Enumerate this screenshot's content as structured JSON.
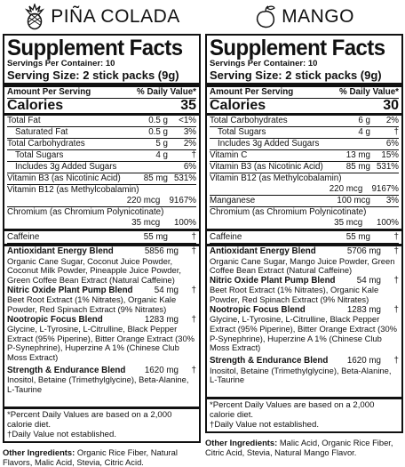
{
  "panels": [
    {
      "flavor": "PIÑA COLADA",
      "icon": "pineapple-icon",
      "title": "Supplement Facts",
      "servings": "Servings Per Container: 10",
      "serving_size": "Serving Size: 2 stick packs (9g)",
      "amount_per_serving": "Amount Per Serving",
      "daily_value_header": "% Daily Value*",
      "calories_label": "Calories",
      "calories": "35",
      "nutrients": [
        {
          "label": "Total Fat",
          "amount": "0.5 g",
          "dv": "<1%",
          "indent": false
        },
        {
          "label": "Saturated Fat",
          "amount": "0.5 g",
          "dv": "3%",
          "indent": true
        },
        {
          "label": "Total Carbohydrates",
          "amount": "5 g",
          "dv": "2%",
          "indent": false
        },
        {
          "label": "Total Sugars",
          "amount": "4 g",
          "dv": "†",
          "indent": true
        },
        {
          "label": "Includes 3g Added Sugars",
          "amount": "",
          "dv": "6%",
          "indent": true
        },
        {
          "label": "Vitamin B3 (as Nicotinic Acid)",
          "amount": "85 mg",
          "dv": "531%",
          "indent": false
        }
      ],
      "b12_label": "Vitamin B12 (as Methylcobalamin)",
      "b12_amount": "220 mcg",
      "b12_dv": "9167%",
      "chromium_label": "Chromium (as Chromium Polynicotinate)",
      "chromium_amount": "35 mcg",
      "chromium_dv": "100%",
      "caffeine_label": "Caffeine",
      "caffeine_amount": "55 mg",
      "caffeine_dv": "†",
      "blends": [
        {
          "name": "Antioxidant Energy Blend",
          "amount": "5856 mg",
          "dv": "†",
          "ingredients": "Organic Cane Sugar, Coconut Juice Powder, Coconut Milk Powder, Pineapple Juice Powder, Green Coffee Bean Extract (Natural Caffeine)"
        },
        {
          "name": "Nitric Oxide Plant Pump Blend",
          "amount": "54 mg",
          "dv": "†",
          "ingredients": "Beet Root Extract (1% Nitrates), Organic Kale Powder, Red Spinach Extract (9% Nitrates)"
        },
        {
          "name": "Nootropic Focus Blend",
          "amount": "1283 mg",
          "dv": "†",
          "ingredients": "Glycine, L-Tyrosine, L-Citrulline, Black Pepper Extract (95% Piperine), Bitter Orange Extract (30% P-Synephrine), Huperzine A 1% (Chinese Club Moss Extract)"
        },
        {
          "name": "Strength & Endurance Blend",
          "amount": "1620 mg",
          "dv": "†",
          "ingredients": "Inositol, Betaine (Trimethylglycine), Beta-Alanine, L-Taurine"
        }
      ],
      "footnote1": "*Percent Daily Values are based on a 2,000 calorie diet.",
      "footnote2": "†Daily Value not established.",
      "other_label": "Other Ingredients:",
      "other_text": " Organic Rice Fiber, Natural Flavors, Malic Acid, Stevia, Citric Acid."
    },
    {
      "flavor": "MANGO",
      "icon": "mango-icon",
      "title": "Supplement Facts",
      "servings": "Servings Per Container: 10",
      "serving_size": "Serving Size: 2 stick packs (9g)",
      "amount_per_serving": "Amount Per Serving",
      "daily_value_header": "% Daily Value*",
      "calories_label": "Calories",
      "calories": "30",
      "nutrients": [
        {
          "label": "Total Carbohydrates",
          "amount": "6 g",
          "dv": "2%",
          "indent": false
        },
        {
          "label": "Total Sugars",
          "amount": "4 g",
          "dv": "†",
          "indent": true
        },
        {
          "label": "Includes 3g Added Sugars",
          "amount": "",
          "dv": "6%",
          "indent": true
        },
        {
          "label": "Vitamin C",
          "amount": "13 mg",
          "dv": "15%",
          "indent": false
        },
        {
          "label": "Vitamin B3 (as Nicotinic Acid)",
          "amount": "85 mg",
          "dv": "531%",
          "indent": false
        }
      ],
      "b12_label": "Vitamin B12 (as Methylcobalamin)",
      "b12_amount": "220 mcg",
      "b12_dv": "9167%",
      "manganese_label": "Manganese",
      "manganese_amount": "100 mcg",
      "manganese_dv": "3%",
      "chromium_label": "Chromium (as Chromium Polynicotinate)",
      "chromium_amount": "35 mcg",
      "chromium_dv": "100%",
      "caffeine_label": "Caffeine",
      "caffeine_amount": "55 mg",
      "caffeine_dv": "†",
      "blends": [
        {
          "name": "Antioxidant Energy Blend",
          "amount": "5706 mg",
          "dv": "†",
          "ingredients": "Organic Cane Sugar, Mango Juice Powder, Green Coffee Bean Extract (Natural Caffeine)"
        },
        {
          "name": "Nitric Oxide Plant Pump Blend",
          "amount": "54 mg",
          "dv": "†",
          "ingredients": "Beet Root Extract (1% Nitrates), Organic Kale Powder, Red Spinach Extract (9% Nitrates)"
        },
        {
          "name": "Nootropic Focus Blend",
          "amount": "1283 mg",
          "dv": "†",
          "ingredients": "Glycine, L-Tyrosine, L-Citrulline, Black Pepper Extract (95% Piperine), Bitter Orange Extract (30% P-Synephrine), Huperzine A 1% (Chinese Club Moss Extract)"
        },
        {
          "name": "Strength & Endurance Blend",
          "amount": "1620 mg",
          "dv": "†",
          "ingredients": "Inositol, Betaine (Trimethylglycine), Beta-Alanine, L-Taurine"
        }
      ],
      "footnote1": "*Percent Daily Values are based on a 2,000 calorie diet.",
      "footnote2": "†Daily Value not established.",
      "other_label": "Other Ingredients:",
      "other_text": " Malic Acid, Organic Rice Fiber, Citric Acid, Stevia, Natural Mango Flavor."
    }
  ]
}
